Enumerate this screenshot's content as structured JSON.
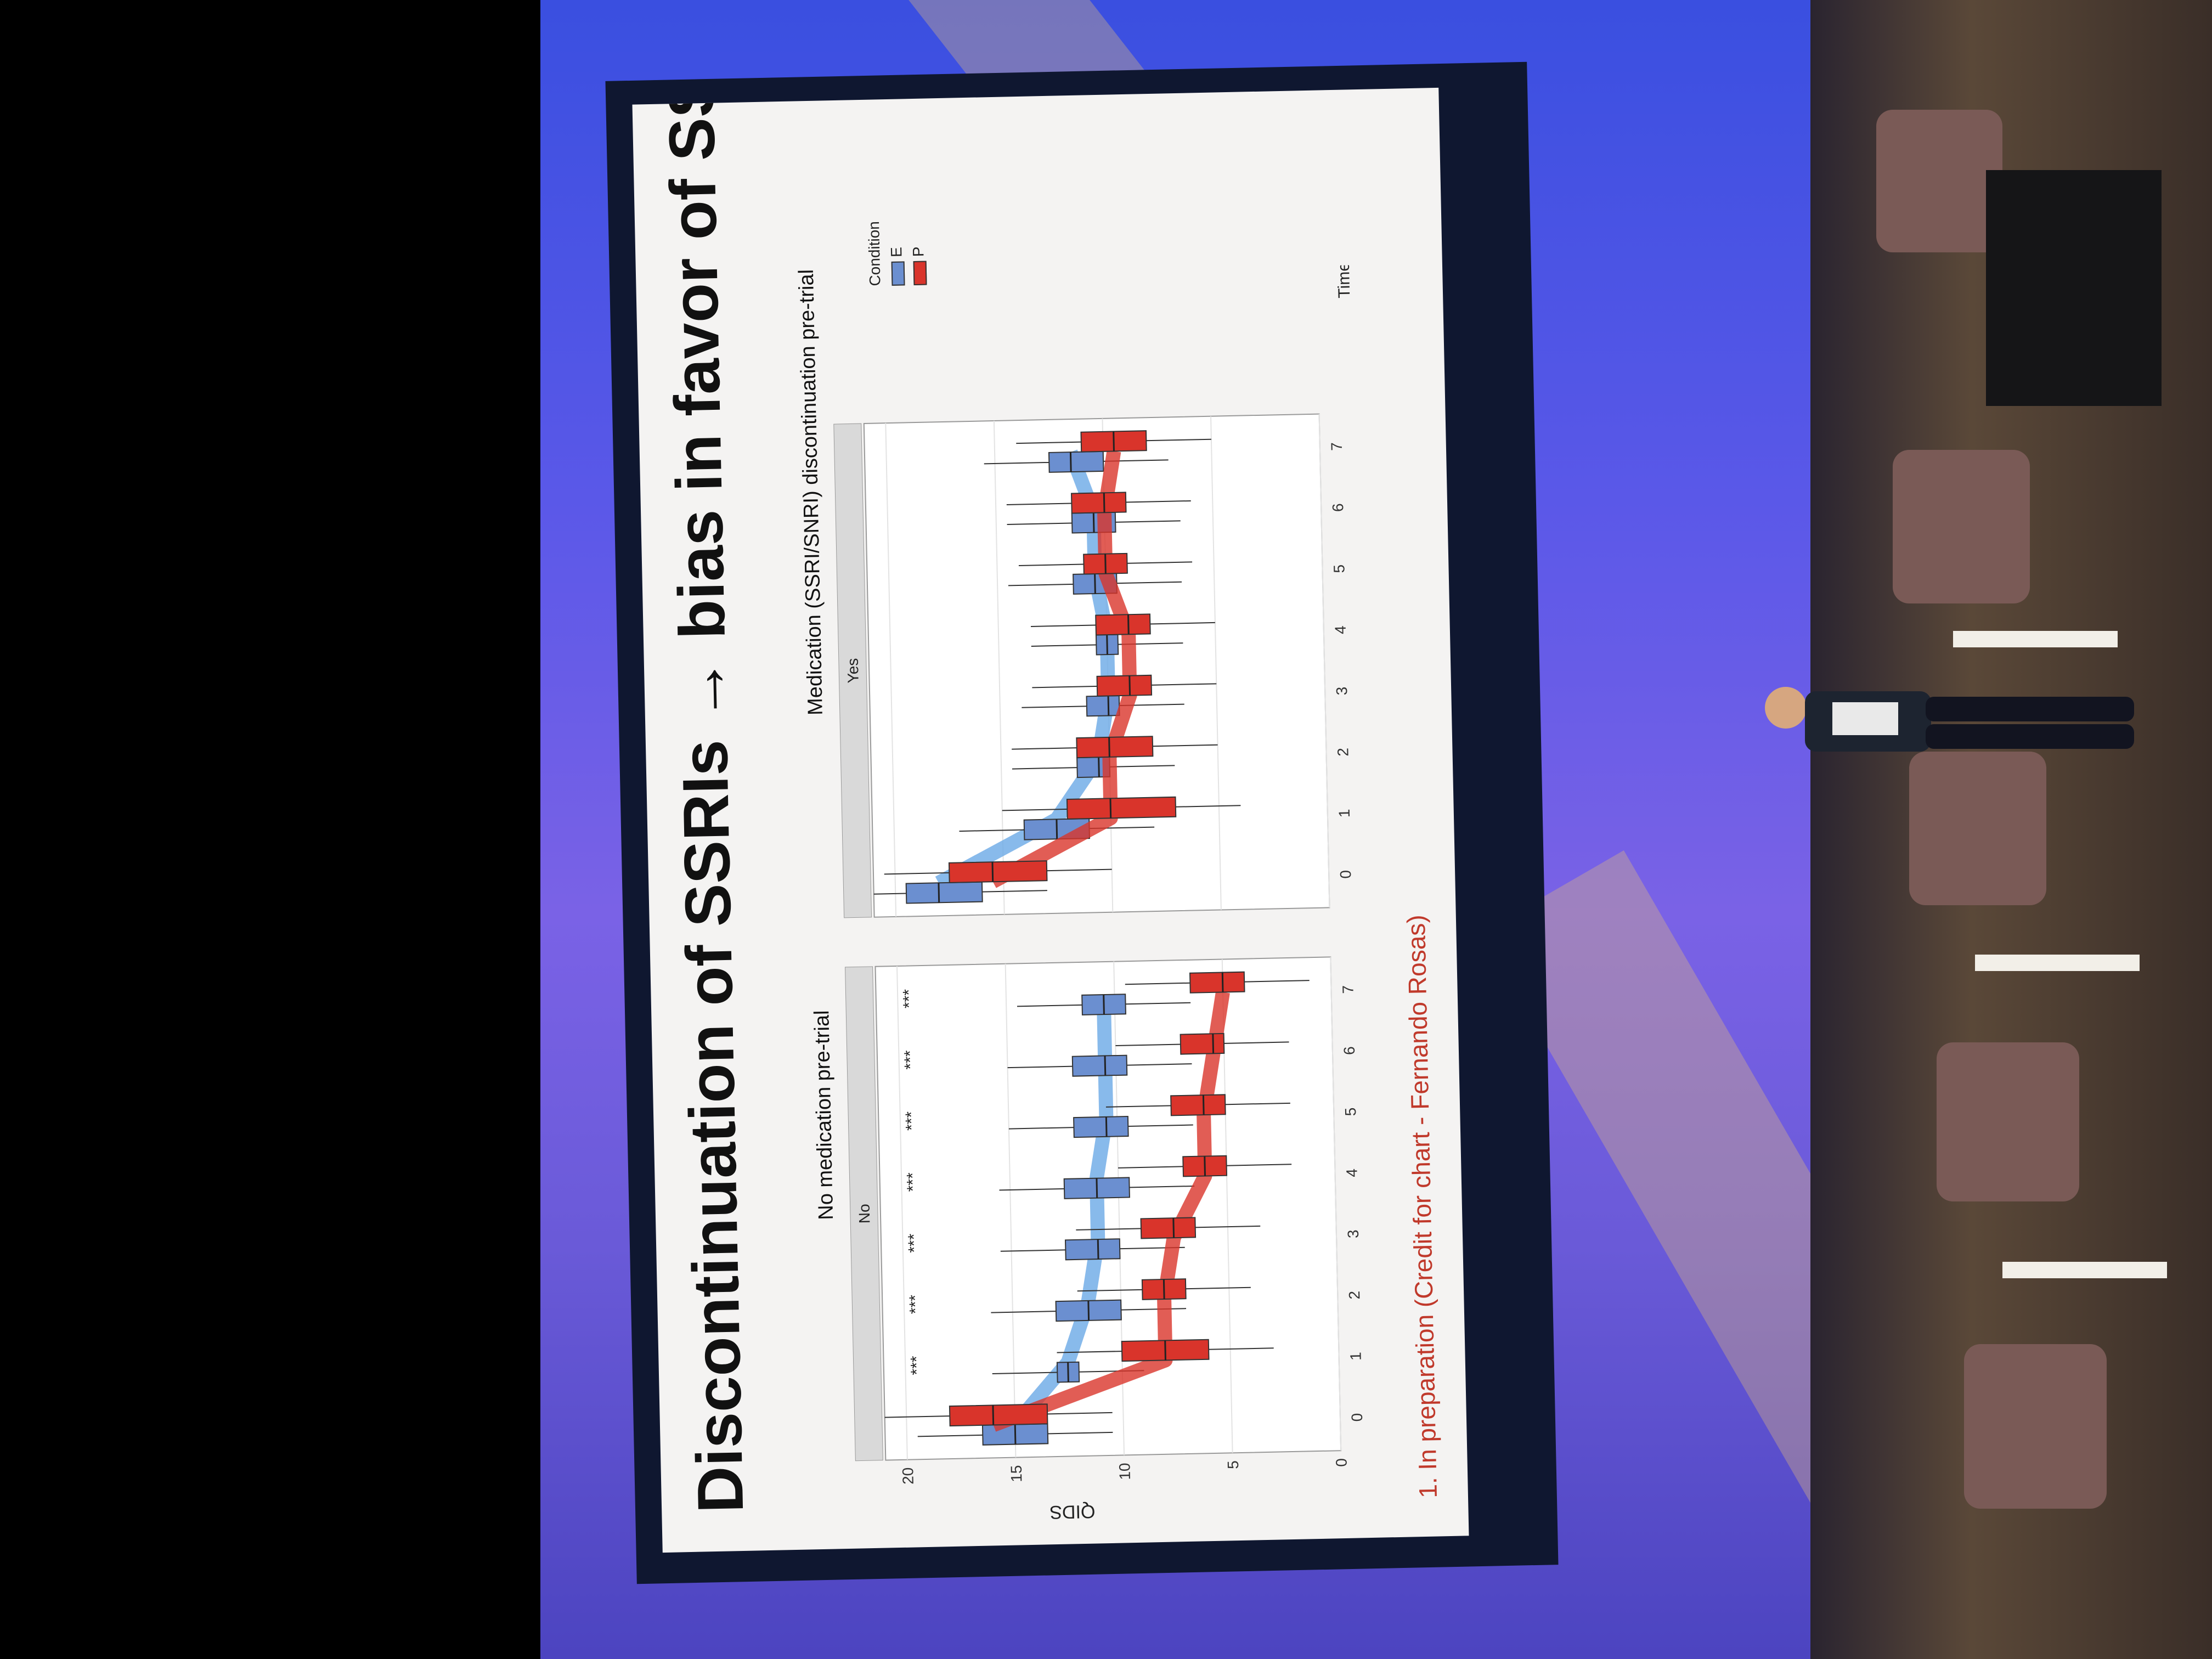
{
  "slide": {
    "title": "Discontinuation of SSRIs → bias in favor of SSRI",
    "footnote": "1. In preparation (Credit for chart - Fernando Rosas)",
    "panel_left_title": "No medication pre-trial",
    "panel_right_title": "Medication (SSRI/SNRI) discontinuation pre-trial",
    "strip_left": "No",
    "strip_right": "Yes",
    "ylabel": "QIDS",
    "xlabel": "Time",
    "legend_title": "Condition",
    "legend_items": [
      "E",
      "P"
    ],
    "significance": "***"
  },
  "colors": {
    "E": "#6b8fd0",
    "P": "#d9342b",
    "E_line": "#6aa9e6",
    "P_line": "#d9342b"
  },
  "chart_data": [
    {
      "type": "box",
      "panel": "No",
      "x": [
        0,
        1,
        2,
        3,
        4,
        5,
        6,
        7
      ],
      "ylim": [
        0,
        21
      ],
      "yticks": [
        0,
        5,
        10,
        15,
        20
      ],
      "series": [
        {
          "name": "E",
          "median": [
            15,
            12.5,
            11.5,
            11,
            11,
            10.5,
            10.5,
            10.5
          ],
          "q1": [
            13.5,
            12,
            10,
            10,
            9.5,
            9.5,
            9.5,
            9.5
          ],
          "q3": [
            16.5,
            13,
            13,
            12.5,
            12.5,
            12,
            12,
            11.5
          ]
        },
        {
          "name": "P",
          "median": [
            16,
            8,
            8,
            7.5,
            6,
            6,
            5.5,
            5
          ],
          "q1": [
            13.5,
            6,
            7,
            6.5,
            5,
            5,
            5,
            4
          ],
          "q3": [
            18,
            10,
            9,
            9,
            7,
            7.5,
            7,
            6.5
          ]
        }
      ],
      "significant_times": [
        1,
        2,
        3,
        4,
        5,
        6,
        7
      ]
    },
    {
      "type": "box",
      "panel": "Yes",
      "x": [
        0,
        1,
        2,
        3,
        4,
        5,
        6,
        7
      ],
      "ylim": [
        0,
        21
      ],
      "yticks": [
        0,
        5,
        10,
        15,
        20
      ],
      "series": [
        {
          "name": "E",
          "median": [
            18,
            12.5,
            10.5,
            10,
            10,
            10.5,
            10.5,
            11.5
          ],
          "q1": [
            16,
            11,
            10,
            9.5,
            9.5,
            9.5,
            9.5,
            10
          ],
          "q3": [
            19.5,
            14,
            11.5,
            11,
            10.5,
            11.5,
            11.5,
            12.5
          ]
        },
        {
          "name": "P",
          "median": [
            15.5,
            10,
            10,
            9,
            9,
            10,
            10,
            9.5
          ],
          "q1": [
            13,
            7,
            8,
            8,
            8,
            9,
            9,
            8
          ],
          "q3": [
            17.5,
            12,
            11.5,
            10.5,
            10.5,
            11,
            11.5,
            11
          ]
        }
      ]
    }
  ]
}
